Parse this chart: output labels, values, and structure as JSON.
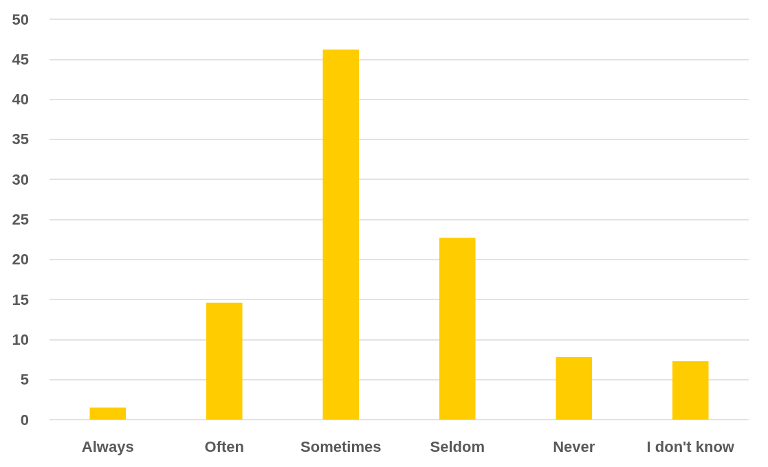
{
  "chart_data": {
    "type": "bar",
    "categories": [
      "Always",
      "Often",
      "Sometimes",
      "Seldom",
      "Never",
      "I don't know"
    ],
    "values": [
      1.5,
      14.6,
      46.2,
      22.7,
      7.8,
      7.3
    ],
    "color": "#ffcc00",
    "ylim": [
      0,
      50
    ],
    "yticks": [
      0,
      5,
      10,
      15,
      20,
      25,
      30,
      35,
      40,
      45,
      50
    ],
    "grid": "y"
  }
}
